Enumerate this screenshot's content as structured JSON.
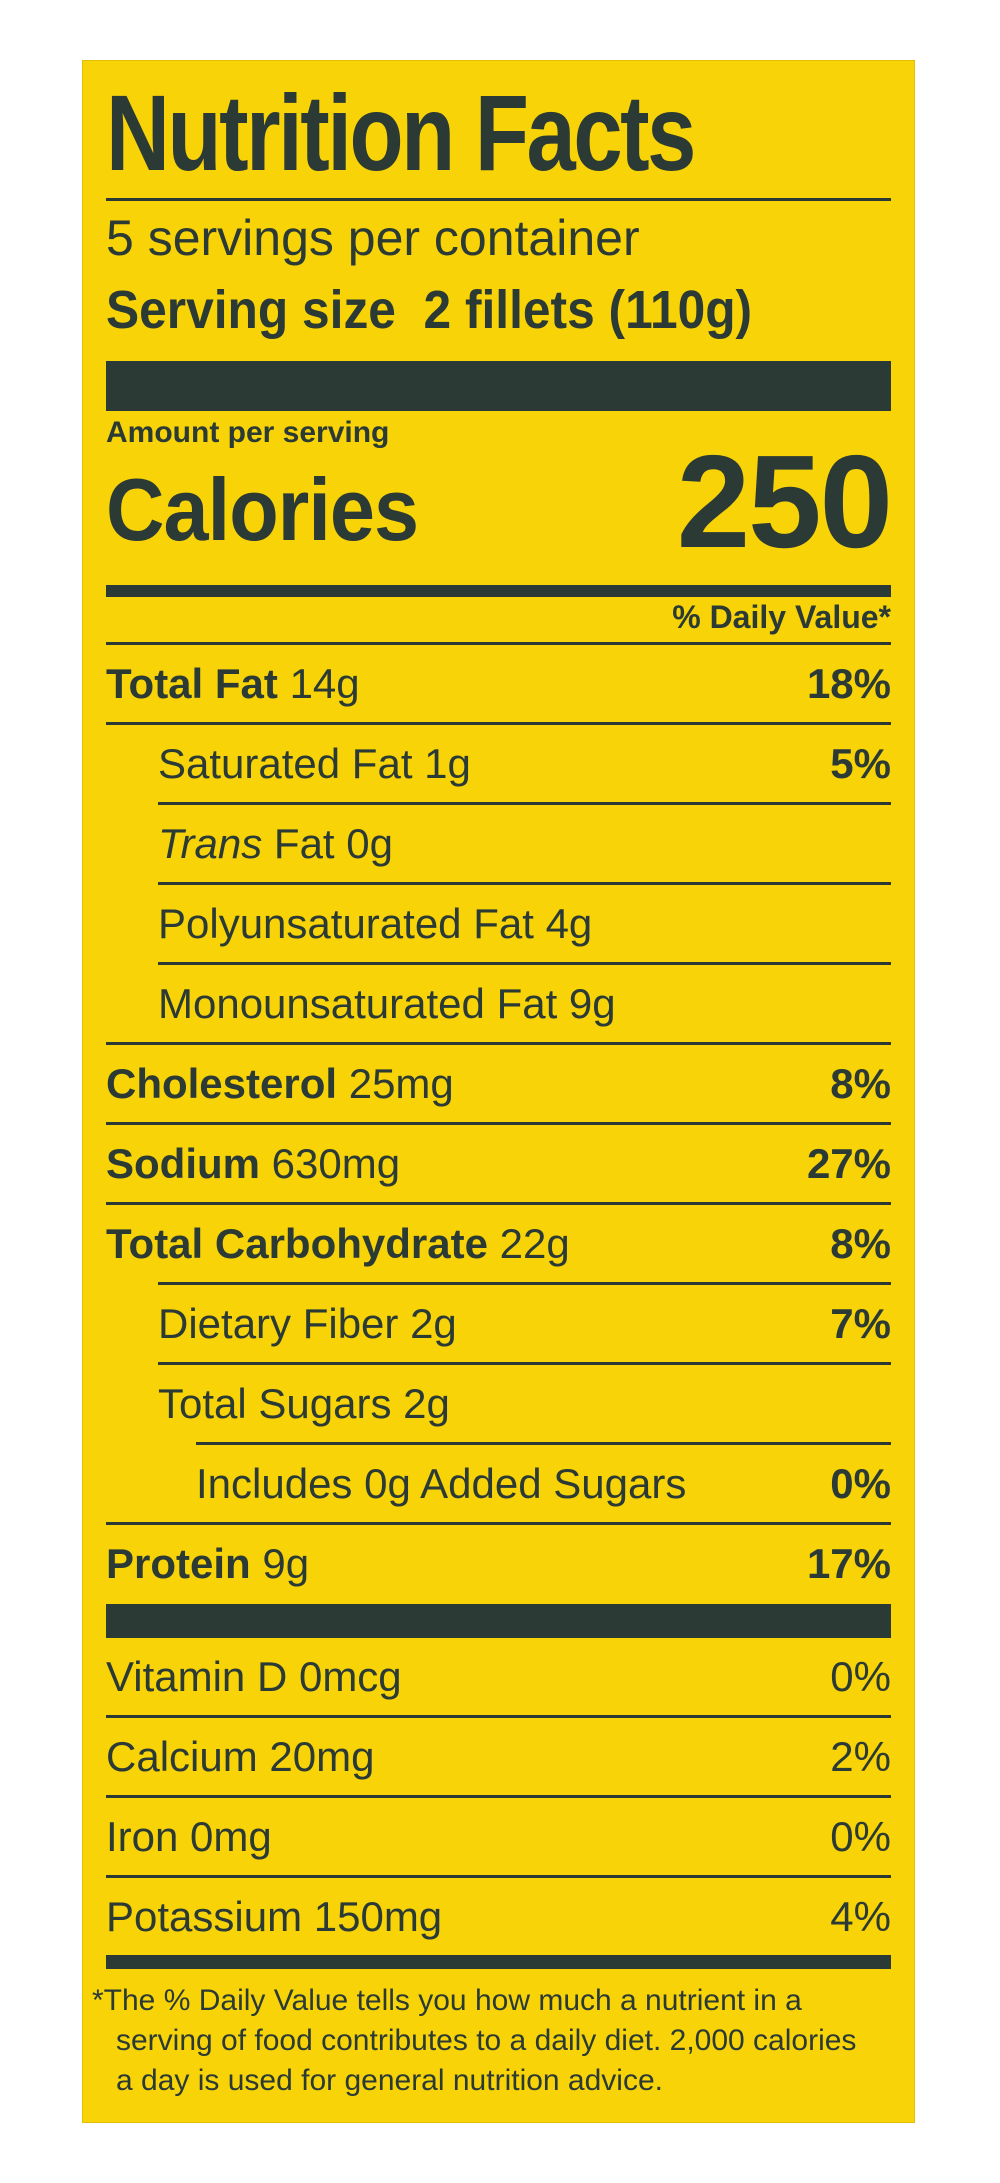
{
  "title": "Nutrition Facts",
  "servings_per_container": "5 servings per container",
  "serving_size_label": "Serving size",
  "serving_size_value": "2 fillets (110g)",
  "amount_per_serving": "Amount per serving",
  "calories_label": "Calories",
  "calories_value": "250",
  "daily_value_header": "% Daily Value*",
  "nutrients": [
    {
      "name": "Total Fat",
      "amount": "14g",
      "dv": "18%"
    },
    {
      "name": "Saturated Fat",
      "amount": "1g",
      "dv": "5%"
    },
    {
      "name_italic": "Trans",
      "name": "Fat",
      "amount": "0g",
      "dv": ""
    },
    {
      "name": "Polyunsaturated Fat",
      "amount": "4g",
      "dv": ""
    },
    {
      "name": "Monounsaturated Fat",
      "amount": "9g",
      "dv": ""
    },
    {
      "name": "Cholesterol",
      "amount": "25mg",
      "dv": "8%"
    },
    {
      "name": "Sodium",
      "amount": "630mg",
      "dv": "27%"
    },
    {
      "name": "Total Carbohydrate",
      "amount": "22g",
      "dv": "8%"
    },
    {
      "name": "Dietary Fiber",
      "amount": "2g",
      "dv": "7%"
    },
    {
      "name": "Total Sugars",
      "amount": "2g",
      "dv": ""
    },
    {
      "name": "Includes 0g Added Sugars",
      "amount": "",
      "dv": "0%"
    },
    {
      "name": "Protein",
      "amount": "9g",
      "dv": "17%"
    }
  ],
  "vitamins": [
    {
      "name": "Vitamin D 0mcg",
      "dv": "0%"
    },
    {
      "name": "Calcium 20mg",
      "dv": "2%"
    },
    {
      "name": "Iron 0mg",
      "dv": "0%"
    },
    {
      "name": "Potassium 150mg",
      "dv": "4%"
    }
  ],
  "footnote_lines": [
    "*The % Daily Value tells you how much a nutrient in a",
    "serving of food contributes to a daily diet. 2,000 calories",
    "a day is used for general nutrition advice."
  ],
  "colors": {
    "background": "#f7d308",
    "ink": "#2b3a35"
  }
}
